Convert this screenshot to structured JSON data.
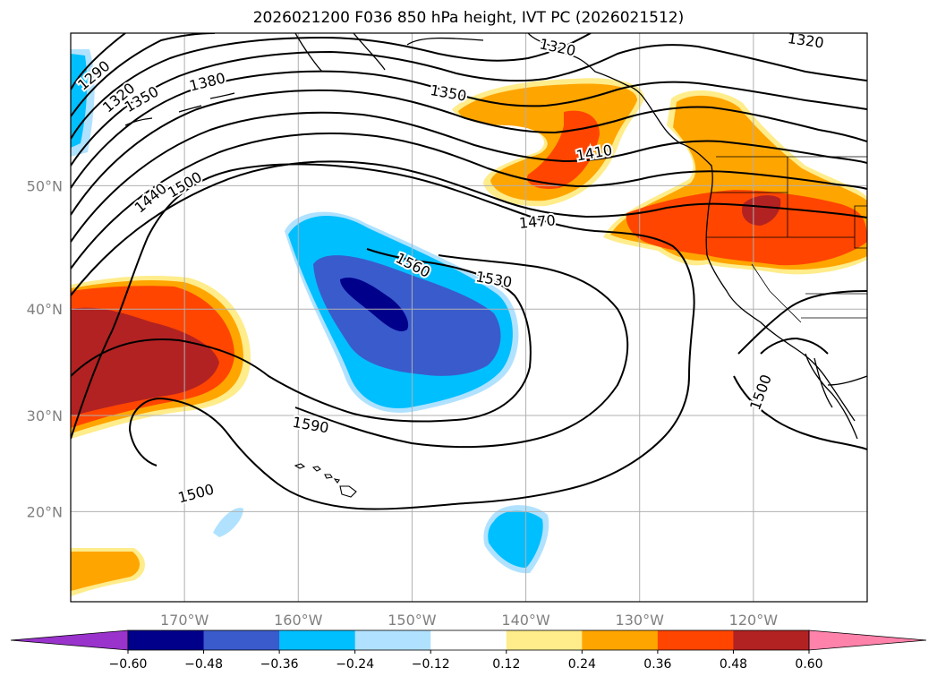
{
  "title": "2026021200 F036 850 hPa height, IVT PC (2026021512)",
  "map": {
    "lon_range": [
      -180,
      -110
    ],
    "lat_range": [
      10,
      60
    ],
    "gridlines": true,
    "lon_ticks": [
      {
        "value": -170,
        "label": "170°W"
      },
      {
        "value": -160,
        "label": "160°W"
      },
      {
        "value": -150,
        "label": "150°W"
      },
      {
        "value": -140,
        "label": "140°W"
      },
      {
        "value": -130,
        "label": "130°W"
      },
      {
        "value": -120,
        "label": "120°W"
      }
    ],
    "lat_ticks": [
      {
        "value": 20,
        "label": "20°N"
      },
      {
        "value": 30,
        "label": "30°N"
      },
      {
        "value": 40,
        "label": "40°N"
      },
      {
        "value": 50,
        "label": "50°N"
      }
    ],
    "contour_labels": [
      {
        "text": "1290",
        "lon": -178.0,
        "lat": 57.5,
        "rot": -40
      },
      {
        "text": "1320",
        "lon": -175.8,
        "lat": 56.1,
        "rot": -40
      },
      {
        "text": "1350",
        "lon": -173.8,
        "lat": 56.0,
        "rot": -30
      },
      {
        "text": "1380",
        "lon": -168.0,
        "lat": 57.1,
        "rot": -14
      },
      {
        "text": "1350",
        "lon": -146.8,
        "lat": 56.4,
        "rot": 10
      },
      {
        "text": "1320",
        "lon": -137.2,
        "lat": 59.2,
        "rot": 12
      },
      {
        "text": "1320",
        "lon": -115.4,
        "lat": 59.6,
        "rot": 8
      },
      {
        "text": "1410",
        "lon": -134.0,
        "lat": 52.4,
        "rot": -10
      },
      {
        "text": "1470",
        "lon": -139.0,
        "lat": 47.3,
        "rot": -5
      },
      {
        "text": "1500",
        "lon": -170.0,
        "lat": 50.1,
        "rot": -30
      },
      {
        "text": "1440",
        "lon": -173.0,
        "lat": 49.1,
        "rot": -40
      },
      {
        "text": "1560",
        "lon": -149.9,
        "lat": 43.8,
        "rot": 27
      },
      {
        "text": "1530",
        "lon": -142.8,
        "lat": 42.6,
        "rot": 10
      },
      {
        "text": "1590",
        "lon": -158.9,
        "lat": 29.1,
        "rot": 10
      },
      {
        "text": "1500",
        "lon": -169.0,
        "lat": 22.0,
        "rot": -15
      },
      {
        "text": "1500",
        "lon": -119.4,
        "lat": 32.3,
        "rot": -70
      }
    ]
  },
  "colorbar": {
    "tick_labels": [
      "−0.60",
      "−0.48",
      "−0.36",
      "−0.24",
      "−0.12",
      "0.12",
      "0.24",
      "0.36",
      "0.48",
      "0.60"
    ],
    "levels": [
      -0.6,
      -0.48,
      -0.36,
      -0.24,
      -0.12,
      0.12,
      0.24,
      0.36,
      0.48,
      0.6
    ],
    "colors": [
      "#9933cc",
      "#00008b",
      "#3a5bcc",
      "#00bfff",
      "#b0e2ff",
      "#ffffff",
      "#ffec8b",
      "#ffa500",
      "#ff4500",
      "#b22222",
      "#ff82ab"
    ],
    "extend": "both"
  },
  "colors": {
    "dark_blue": "#00008b",
    "mid_blue": "#3a5bcc",
    "cyan": "#00bfff",
    "light_blue": "#b0e2ff",
    "yellow": "#ffec8b",
    "orange": "#ffa500",
    "red_orange": "#ff4500",
    "firebrick": "#b22222",
    "gridline": "#b0b0b0"
  }
}
